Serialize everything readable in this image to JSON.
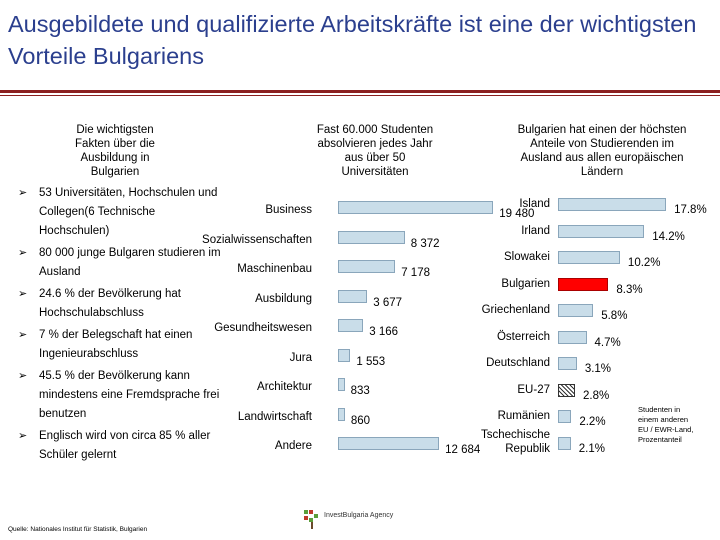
{
  "title": "Ausgebildete und qualifizierte Arbeitskräfte ist eine der wichtigsten Vorteile Bulgariens",
  "columns": {
    "left_heading": "Die wichtigsten\nFakten über die\nAusbildung in\nBulgarien",
    "middle_heading": "Fast 60.000 Studenten\nabsolvieren jedes Jahr\naus über 50\nUniversitäten",
    "right_heading": "Bulgarien hat einen der höchsten\nAnteile von Studierenden im\nAusland aus allen europäischen\nLändern"
  },
  "bullets": [
    "53 Universitäten, Hochschulen und Collegen(6 Technische Hochschulen)",
    "80 000 junge Bulgaren studieren im Ausland",
    "24.6 % der Bevölkerung hat Hochschulabschluss",
    "7 % der Belegschaft hat einen Ingenieurabschluss",
    "45.5 %  der Bevölkerung kann mindestens eine Fremdsprache frei benutzen",
    "Englisch wird von circa  85 % aller Schüler gelernt"
  ],
  "chart_data": [
    {
      "type": "bar",
      "orientation": "horizontal",
      "categories": [
        "Business",
        "Sozialwissenschaften",
        "Maschinenbau",
        "Ausbildung",
        "Gesundheitswesen",
        "Jura",
        "Architektur",
        "Landwirtschaft",
        "Andere"
      ],
      "values": [
        19480,
        8372,
        7178,
        3677,
        3166,
        1553,
        833,
        860,
        12684
      ],
      "value_labels": [
        "19 480",
        "8 372",
        "7 178",
        "3 677",
        "3 166",
        "1 553",
        "833",
        "860",
        "12 684"
      ],
      "xlim": [
        0,
        21000
      ]
    },
    {
      "type": "bar",
      "orientation": "horizontal",
      "categories": [
        "Island",
        "Irland",
        "Slowakei",
        "Bulgarien",
        "Griechenland",
        "Österreich",
        "Deutschland",
        "EU-27",
        "Rumänien",
        "Tschechische Republik"
      ],
      "values": [
        17.8,
        14.2,
        10.2,
        8.3,
        5.8,
        4.7,
        3.1,
        2.8,
        2.2,
        2.1
      ],
      "value_labels": [
        "17.8%",
        "14.2%",
        "10.2%",
        "8.3%",
        "5.8%",
        "4.7%",
        "3.1%",
        "2.8%",
        "2.2%",
        "2.1%"
      ],
      "highlight": {
        "Bulgarien": "#ff0000",
        "EU-27": "pattern"
      },
      "bar_color": "#c9dde9",
      "xlim": [
        0,
        19
      ],
      "legend_note": "Studenten in\neinem anderen\nEU / EWR-Land,\nProzentanteil"
    }
  ],
  "source": "Quelle: Nationales Institut für Statistik, Bulgarien",
  "logo_text": "InvestBulgaria Agency"
}
